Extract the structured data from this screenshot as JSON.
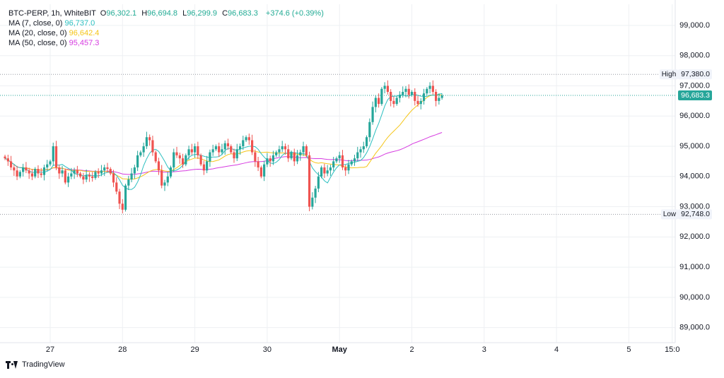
{
  "legend": {
    "symbol": "BTC-PERP, 1h, WhiteBIT",
    "o_label": "O",
    "o_value": "96,302.1",
    "h_label": "H",
    "h_value": "96,694.8",
    "l_label": "L",
    "l_value": "96,299.9",
    "c_label": "C",
    "c_value": "96,683.3",
    "change": "+374.6 (+0.39%)",
    "ma7_label": "MA (7, close, 0)",
    "ma7_value": "96,737.0",
    "ma20_label": "MA (20, close, 0)",
    "ma20_value": "96,642.4",
    "ma50_label": "MA (50, close, 0)",
    "ma50_value": "95,457.3"
  },
  "branding": {
    "text": "TradingView",
    "logo_icon": "tradingview-logo-icon"
  },
  "colors": {
    "up": "#26a69a",
    "down": "#ef5350",
    "ma7": "#2bbfc0",
    "ma20": "#f5c518",
    "ma50": "#d63be0",
    "grid": "#eef0f3",
    "axis_text": "#131722",
    "value_up": "#22ab94"
  },
  "chart_data": {
    "type": "candlestick",
    "timeframe": "1h",
    "y_range": [
      88500,
      99700
    ],
    "y_ticks": [
      89000,
      90000,
      91000,
      92000,
      93000,
      94000,
      95000,
      96000,
      97000,
      98000,
      99000
    ],
    "y_tick_labels": [
      "89,000.0",
      "90,000.0",
      "91,000.0",
      "92,000.0",
      "93,000.0",
      "94,000.0",
      "95,000.0",
      "96,000.0",
      "97,000.0",
      "98,000.0",
      "99,000.0"
    ],
    "x_tick_labels": [
      "27",
      "28",
      "29",
      "30",
      "May",
      "2",
      "3",
      "4",
      "5",
      "15:0"
    ],
    "x_tick_days": [
      1,
      2,
      3,
      4,
      5,
      6,
      7,
      8,
      9,
      9.6
    ],
    "x_day_start": 0.375,
    "candles_per_day": 24,
    "high": {
      "label": "High",
      "value": 97380,
      "text": "97,380.0"
    },
    "low": {
      "label": "Low",
      "value": 92748,
      "text": "92,748.0"
    },
    "last": {
      "value": 96683.3,
      "text": "96,683.3"
    },
    "closes": [
      94600,
      94500,
      94300,
      94200,
      94000,
      94150,
      94300,
      94200,
      94100,
      94000,
      94250,
      94100,
      94050,
      94300,
      94400,
      94500,
      95000,
      94300,
      94100,
      94200,
      93800,
      94000,
      94100,
      94200,
      94100,
      94000,
      93900,
      94050,
      94000,
      93950,
      94150,
      94100,
      94200,
      94300,
      94250,
      94100,
      93800,
      93500,
      93100,
      92900,
      93700,
      93900,
      94100,
      94300,
      94700,
      94800,
      95000,
      95300,
      95200,
      94800,
      94500,
      94200,
      93700,
      93800,
      94000,
      94300,
      94800,
      94700,
      94600,
      94400,
      94700,
      94900,
      94800,
      95000,
      94700,
      94400,
      94200,
      94500,
      94800,
      94900,
      95000,
      94800,
      94900,
      95100,
      95000,
      94800,
      94600,
      94900,
      95000,
      95200,
      95300,
      95200,
      94800,
      94500,
      94300,
      94000,
      94400,
      94600,
      94500,
      94700,
      94800,
      94900,
      95000,
      94900,
      94600,
      94800,
      94500,
      94700,
      94800,
      95000,
      94700,
      93000,
      93300,
      93600,
      94000,
      94300,
      94100,
      94200,
      94300,
      94500,
      94600,
      94700,
      94300,
      94200,
      94400,
      94500,
      94600,
      94800,
      94900,
      95000,
      95300,
      95800,
      96300,
      96600,
      96400,
      96900,
      97000,
      96800,
      96500,
      96400,
      96600,
      96700,
      96800,
      96900,
      96700,
      96800,
      96500,
      96400,
      96500,
      96750,
      96900,
      97000,
      96800,
      96500,
      96600,
      96683.3
    ],
    "ma7_last": 96737.0,
    "ma20_last": 96642.4,
    "ma50_last": 95457.3
  }
}
